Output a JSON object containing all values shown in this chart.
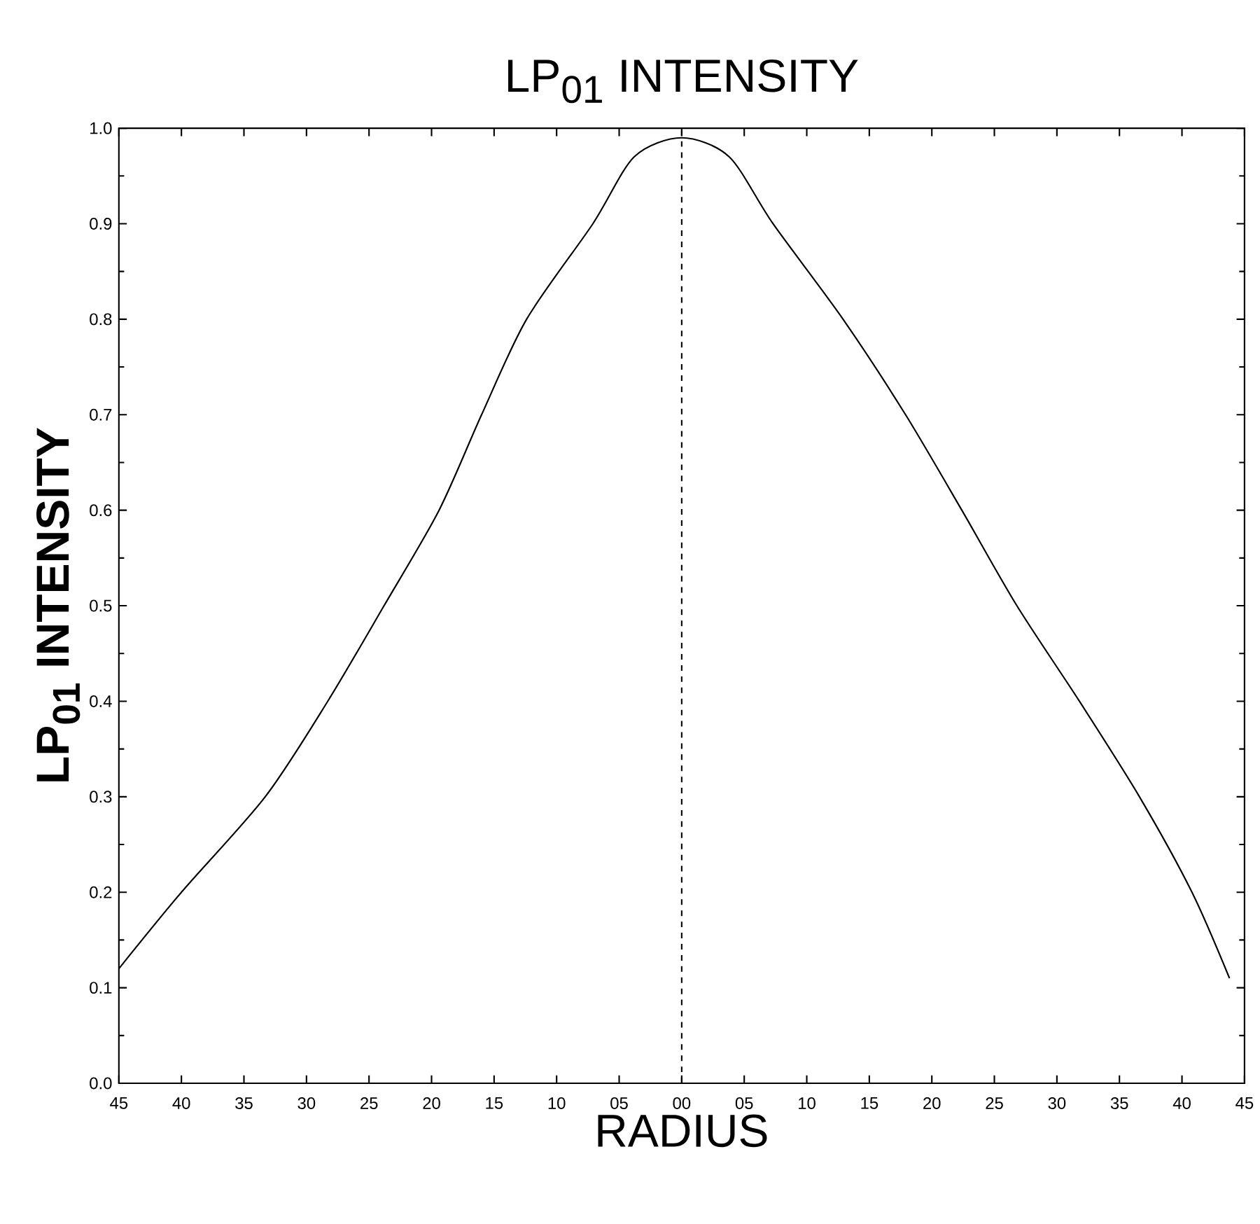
{
  "chart_data": {
    "type": "line",
    "title": "LP$_{01}$   INTENSITY",
    "xlabel": "RADIUS",
    "ylabel": "LP$_{01}$ INTENSITY",
    "x": [
      -45,
      -40,
      -33.3,
      -28.3,
      -23.8,
      -19.4,
      -16,
      -12.4,
      -7.1,
      -3.8,
      0,
      3.8,
      7.3,
      12.9,
      17.9,
      22.4,
      26.8,
      31.8,
      36.6,
      40.8,
      43.8
    ],
    "series": [
      {
        "color": "#000000",
        "values": [
          0.12,
          0.2,
          0.3,
          0.4,
          0.5,
          0.6,
          0.7,
          0.8,
          0.9,
          0.97,
          0.99,
          0.97,
          0.9,
          0.8,
          0.7,
          0.6,
          0.5,
          0.4,
          0.3,
          0.2,
          0.11
        ]
      }
    ],
    "xlim": [
      -45,
      45
    ],
    "xticks": [
      {
        "value": -45,
        "label": "45"
      },
      {
        "value": -40,
        "label": "40"
      },
      {
        "value": -35,
        "label": "35"
      },
      {
        "value": -30,
        "label": "30"
      },
      {
        "value": -25,
        "label": "25"
      },
      {
        "value": -20,
        "label": "20"
      },
      {
        "value": -15,
        "label": "15"
      },
      {
        "value": -10,
        "label": "10"
      },
      {
        "value": -5,
        "label": "05"
      },
      {
        "value": 0,
        "label": "00"
      },
      {
        "value": 5,
        "label": "05"
      },
      {
        "value": 10,
        "label": "10"
      },
      {
        "value": 15,
        "label": "15"
      },
      {
        "value": 20,
        "label": "20"
      },
      {
        "value": 25,
        "label": "25"
      },
      {
        "value": 30,
        "label": "30"
      },
      {
        "value": 35,
        "label": "35"
      },
      {
        "value": 40,
        "label": "40"
      },
      {
        "value": 45,
        "label": "45"
      }
    ],
    "ylim": [
      0,
      1.0
    ],
    "yticks": [
      {
        "value": 0,
        "label": "0.0"
      },
      {
        "value": 0.1,
        "label": "0.1"
      },
      {
        "value": 0.2,
        "label": "0.2"
      },
      {
        "value": 0.3,
        "label": "0.3"
      },
      {
        "value": 0.4,
        "label": "0.4"
      },
      {
        "value": 0.5,
        "label": "0.5"
      },
      {
        "value": 0.6,
        "label": "0.6"
      },
      {
        "value": 0.7,
        "label": "0.7"
      },
      {
        "value": 0.8,
        "label": "0.8"
      },
      {
        "value": 0.9,
        "label": "0.9"
      },
      {
        "value": 1.0,
        "label": "1.0"
      }
    ],
    "ref_lines": [
      {
        "axis": "x",
        "value": 0,
        "line_style": "dashed"
      }
    ],
    "grid": false,
    "legend": false,
    "marker": "none",
    "line_style": "solid"
  }
}
